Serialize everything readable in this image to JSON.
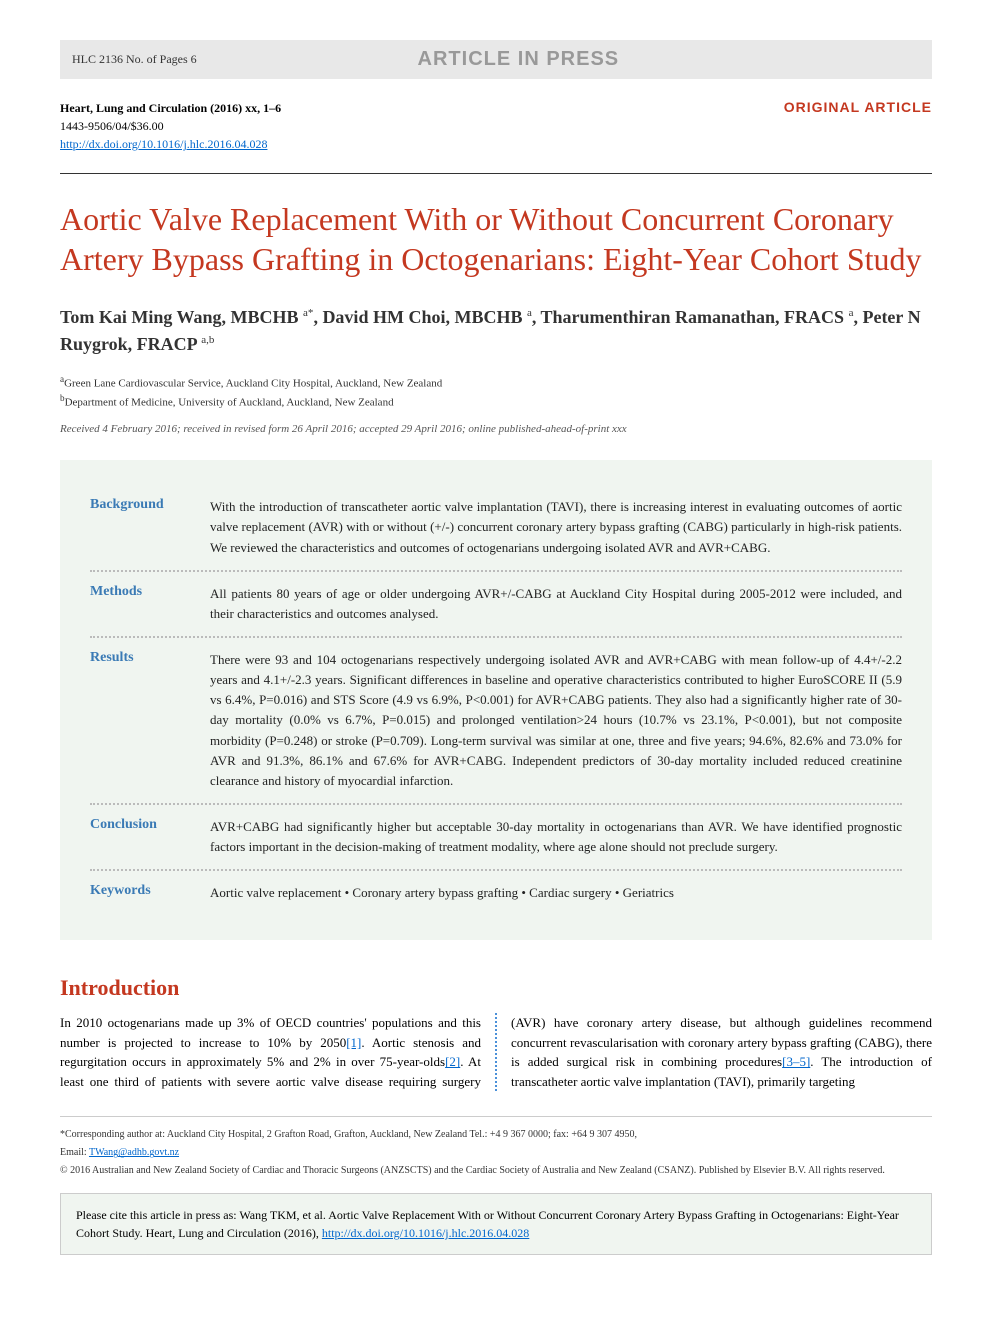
{
  "colors": {
    "accent_red": "#c43820",
    "link_blue": "#0066cc",
    "abstract_label": "#3a7ab5",
    "abstract_bg": "#f0f5f0",
    "header_bg": "#e8e8e8",
    "column_rule": "#4a90d9"
  },
  "header": {
    "page_ref": "HLC 2136 No. of Pages 6",
    "banner": "ARTICLE IN PRESS"
  },
  "meta": {
    "journal_line": "Heart, Lung and Circulation (2016) xx, 1–6",
    "issn_line": "1443-9506/04/$36.00",
    "doi": "http://dx.doi.org/10.1016/j.hlc.2016.04.028",
    "article_type": "ORIGINAL ARTICLE"
  },
  "title": "Aortic Valve Replacement With or Without Concurrent Coronary Artery Bypass Grafting in Octogenarians: Eight-Year Cohort Study",
  "authors_html": "Tom Kai Ming Wang, MBCHB <sup>a*</sup>, David HM Choi, MBCHB <sup>a</sup>, Tharumenthiran Ramanathan, FRACS <sup>a</sup>, Peter N Ruygrok, FRACP <sup>a,b</sup>",
  "affiliations": [
    "aGreen Lane Cardiovascular Service, Auckland City Hospital, Auckland, New Zealand",
    "bDepartment of Medicine, University of Auckland, Auckland, New Zealand"
  ],
  "dates": "Received 4 February 2016; received in revised form 26 April 2016; accepted 29 April 2016; online published-ahead-of-print xxx",
  "abstract": {
    "rows": [
      {
        "label": "Background",
        "text": "With the introduction of transcatheter aortic valve implantation (TAVI), there is increasing interest in evaluating outcomes of aortic valve replacement (AVR) with or without (+/-) concurrent coronary artery bypass grafting (CABG) particularly in high-risk patients. We reviewed the characteristics and outcomes of octogenarians undergoing isolated AVR and AVR+CABG."
      },
      {
        "label": "Methods",
        "text": "All patients 80 years of age or older undergoing AVR+/-CABG at Auckland City Hospital during 2005-2012 were included, and their characteristics and outcomes analysed."
      },
      {
        "label": "Results",
        "text": "There were 93 and 104 octogenarians respectively undergoing isolated AVR and AVR+CABG with mean follow-up of 4.4+/-2.2 years and 4.1+/-2.3 years. Significant differences in baseline and operative characteristics contributed to higher EuroSCORE II (5.9 vs 6.4%, P=0.016) and STS Score (4.9 vs 6.9%, P<0.001) for AVR+CABG patients. They also had a significantly higher rate of 30-day mortality (0.0% vs 6.7%, P=0.015) and prolonged ventilation>24 hours (10.7% vs 23.1%, P<0.001), but not composite morbidity (P=0.248) or stroke (P=0.709). Long-term survival was similar at one, three and five years; 94.6%, 82.6% and 73.0% for AVR and 91.3%, 86.1% and 67.6% for AVR+CABG. Independent predictors of 30-day mortality included reduced creatinine clearance and history of myocardial infarction."
      },
      {
        "label": "Conclusion",
        "text": "AVR+CABG had significantly higher but acceptable 30-day mortality in octogenarians than AVR. We have identified prognostic factors important in the decision-making of treatment modality, where age alone should not preclude surgery."
      },
      {
        "label": "Keywords",
        "text": "Aortic valve replacement • Coronary artery bypass grafting • Cardiac surgery • Geriatrics"
      }
    ]
  },
  "introduction": {
    "heading": "Introduction",
    "body_html": "In 2010 octogenarians made up 3% of OECD countries' populations and this number is projected to increase to 10% by 2050<a class='ref-link' href='#'>[1]</a>. Aortic stenosis and regurgitation occurs in approximately 5% and 2% in over 75-year-olds<a class='ref-link' href='#'>[2]</a>. At least one third of patients with severe aortic valve disease requiring surgery (AVR) have coronary artery disease, but although guidelines recommend concurrent revascularisation with coronary artery bypass grafting (CABG), there is added surgical risk in combining procedures<a class='ref-link' href='#'>[3–5]</a>. The introduction of transcatheter aortic valve implantation (TAVI), primarily targeting"
  },
  "footer": {
    "corresponding": "*Corresponding author at: Auckland City Hospital, 2 Grafton Road, Grafton, Auckland, New Zealand Tel.: +4 9 367 0000; fax: +64 9 307 4950,",
    "email_label": "Email: ",
    "email": "TWang@adhb.govt.nz",
    "copyright": "© 2016 Australian and New Zealand Society of Cardiac and Thoracic Surgeons (ANZSCTS) and the Cardiac Society of Australia and New Zealand (CSANZ). Published by Elsevier B.V. All rights reserved."
  },
  "cite_box": {
    "prefix": "Please cite this article in press as: Wang TKM, et al. Aortic Valve Replacement With or Without Concurrent Coronary Artery Bypass Grafting in Octogenarians: Eight-Year Cohort Study. Heart, Lung and Circulation (2016), ",
    "link": "http://dx.doi.org/10.1016/j.hlc.2016.04.028"
  }
}
